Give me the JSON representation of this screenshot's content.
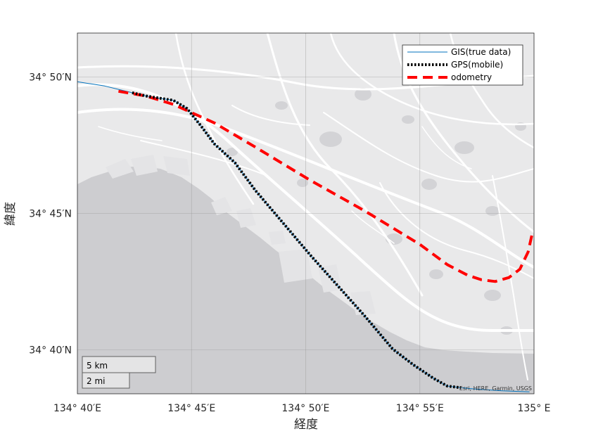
{
  "chart_data": {
    "type": "line",
    "xlabel": "経度",
    "ylabel": "緯度",
    "x_ticks": [
      {
        "value": 134.6667,
        "label": "134°  40′E"
      },
      {
        "value": 134.75,
        "label": "134°  45′E"
      },
      {
        "value": 134.8333,
        "label": "134°  50′E"
      },
      {
        "value": 134.9167,
        "label": "134°  55′E"
      },
      {
        "value": 135.0,
        "label": "135°  E"
      }
    ],
    "y_ticks": [
      {
        "value": 34.6667,
        "label": "34°  40′N"
      },
      {
        "value": 34.75,
        "label": "34°  45′N"
      },
      {
        "value": 34.8333,
        "label": "34°  50′N"
      }
    ],
    "xlim": [
      134.6667,
      135.0
    ],
    "ylim": [
      34.64,
      34.86
    ],
    "grid": true,
    "legend_position": "top-right",
    "series": [
      {
        "name": "GIS(true data)",
        "color": "#0072BD",
        "style": "solid",
        "x": [
          134.6667,
          134.6867,
          134.7067,
          134.7167,
          134.7267,
          134.7367,
          134.7467,
          134.7567,
          134.7667,
          134.7817,
          134.7967,
          134.8167,
          134.8367,
          134.8567,
          134.8767,
          134.8967,
          134.9117,
          134.9267,
          134.9367,
          134.9467,
          134.9567,
          134.9767,
          134.9967
        ],
        "y": [
          34.8303,
          34.8277,
          34.8236,
          34.8216,
          34.8203,
          34.819,
          34.814,
          34.8036,
          34.7924,
          34.7809,
          34.764,
          34.7443,
          34.7246,
          34.7059,
          34.6872,
          34.6674,
          34.6578,
          34.6494,
          34.6447,
          34.6437,
          34.6429,
          34.6418,
          34.6412
        ]
      },
      {
        "name": "GPS(mobile)",
        "color": "#000000",
        "style": "dotted",
        "x": [
          134.7067,
          134.7167,
          134.7267,
          134.7367,
          134.7467,
          134.7567,
          134.7667,
          134.7817,
          134.7967,
          134.8167,
          134.8367,
          134.8567,
          134.8767,
          134.8967,
          134.9117,
          134.9267,
          134.9367,
          134.9467
        ],
        "y": [
          34.8236,
          34.8216,
          34.8203,
          34.819,
          34.814,
          34.8036,
          34.7924,
          34.7809,
          34.764,
          34.7443,
          34.7246,
          34.7059,
          34.6872,
          34.6674,
          34.6578,
          34.6494,
          34.6447,
          34.6437
        ]
      },
      {
        "name": "odometry",
        "color": "#FF0000",
        "style": "dashed",
        "x": [
          134.6967,
          134.7167,
          134.7367,
          134.7667,
          134.7967,
          134.8367,
          134.8767,
          134.9167,
          134.9367,
          134.9517,
          134.9617,
          134.9717,
          134.9817,
          134.9897,
          134.9957,
          134.9991
        ],
        "y": [
          34.8245,
          34.8216,
          34.8165,
          34.8052,
          34.7904,
          34.7702,
          34.7514,
          34.7311,
          34.7188,
          34.7122,
          34.7095,
          34.7085,
          34.7109,
          34.716,
          34.7265,
          34.7391
        ]
      }
    ]
  },
  "scalebar": {
    "km_label": "5 km",
    "mi_label": "2 mi"
  },
  "attribution": "Esri, HERE, Garmin, USGS",
  "colors": {
    "land": "#e9e9ea",
    "water": "#cdcdd0",
    "roads": "#ffffff",
    "frame": "#262626"
  }
}
